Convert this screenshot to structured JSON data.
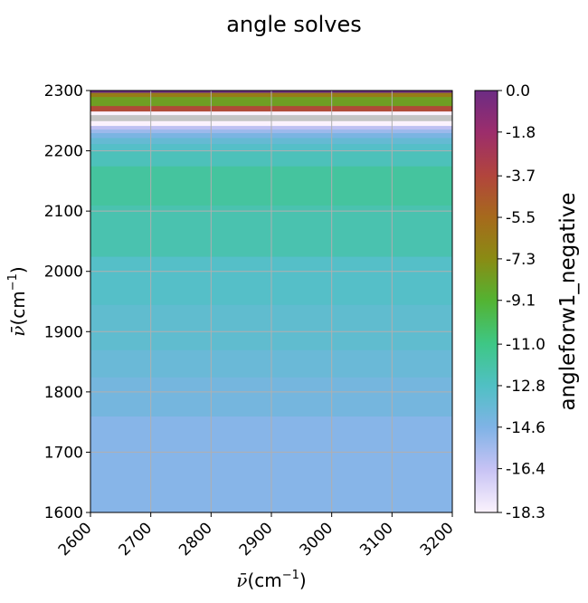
{
  "chart_data": {
    "type": "heatmap",
    "title": "angle solves",
    "xlabel_symbol": "ν̄",
    "xlabel_unit": "(cm",
    "xlabel_exp": "−1",
    "xlabel_close": ")",
    "ylabel_symbol": "ν̄",
    "ylabel_unit": "(cm",
    "ylabel_exp": "−1",
    "ylabel_close": ")",
    "xlim": [
      2600,
      3200
    ],
    "ylim": [
      1600,
      2300
    ],
    "xticks": [
      "2600",
      "2700",
      "2800",
      "2900",
      "3000",
      "3100",
      "3200"
    ],
    "yticks": [
      "1600",
      "1700",
      "1800",
      "1900",
      "2000",
      "2100",
      "2200",
      "2300"
    ],
    "grid": true,
    "colorbar": {
      "label": "angleforw1_negative",
      "range": [
        -18.3,
        0.0
      ],
      "ticks": [
        "0.0",
        "-1.8",
        "-3.7",
        "-5.5",
        "-7.3",
        "-9.1",
        "-11.0",
        "-12.8",
        "-14.6",
        "-16.4",
        "-18.3"
      ],
      "tick_values": [
        0.0,
        -1.8,
        -3.7,
        -5.5,
        -7.3,
        -9.1,
        -11.0,
        -12.8,
        -14.6,
        -16.4,
        -18.3
      ],
      "colormap_stops": [
        {
          "value": -18.3,
          "color": "#fbf2fd"
        },
        {
          "value": -16.4,
          "color": "#c6c2f4"
        },
        {
          "value": -14.6,
          "color": "#7fb3e6"
        },
        {
          "value": -12.8,
          "color": "#50c0c4"
        },
        {
          "value": -11.0,
          "color": "#3ec786"
        },
        {
          "value": -9.1,
          "color": "#53b332"
        },
        {
          "value": -7.3,
          "color": "#8a8b14"
        },
        {
          "value": -5.5,
          "color": "#a66a1c"
        },
        {
          "value": -3.7,
          "color": "#b2453c"
        },
        {
          "value": -1.8,
          "color": "#9c2d6c"
        },
        {
          "value": 0.0,
          "color": "#6c2c84"
        }
      ]
    },
    "bands": [
      {
        "y0": 1600,
        "y1": 1760,
        "value": -14.8
      },
      {
        "y0": 1760,
        "y1": 1825,
        "value": -14.2
      },
      {
        "y0": 1825,
        "y1": 1870,
        "value": -13.8
      },
      {
        "y0": 1870,
        "y1": 1945,
        "value": -13.4
      },
      {
        "y0": 1945,
        "y1": 2025,
        "value": -13.0
      },
      {
        "y0": 2025,
        "y1": 2110,
        "value": -12.2
      },
      {
        "y0": 2110,
        "y1": 2175,
        "value": -11.7
      },
      {
        "y0": 2175,
        "y1": 2200,
        "value": -12.5
      },
      {
        "y0": 2200,
        "y1": 2212,
        "value": -13.0
      },
      {
        "y0": 2212,
        "y1": 2222,
        "value": -13.6
      },
      {
        "y0": 2222,
        "y1": 2230,
        "value": -14.4
      },
      {
        "y0": 2230,
        "y1": 2236,
        "value": -15.3
      },
      {
        "y0": 2236,
        "y1": 2242,
        "value": -16.2
      },
      {
        "y0": 2242,
        "y1": 2250,
        "value": -18.3
      },
      {
        "y0": 2250,
        "y1": 2260,
        "value": -18.3,
        "color": "#c4c4c4"
      },
      {
        "y0": 2260,
        "y1": 2266,
        "value": -18.3
      },
      {
        "y0": 2266,
        "y1": 2275,
        "value": -4.0
      },
      {
        "y0": 2275,
        "y1": 2290,
        "value": -8.2
      },
      {
        "y0": 2290,
        "y1": 2297,
        "value": -6.5
      },
      {
        "y0": 2297,
        "y1": 2300,
        "value": 0.0
      }
    ]
  }
}
